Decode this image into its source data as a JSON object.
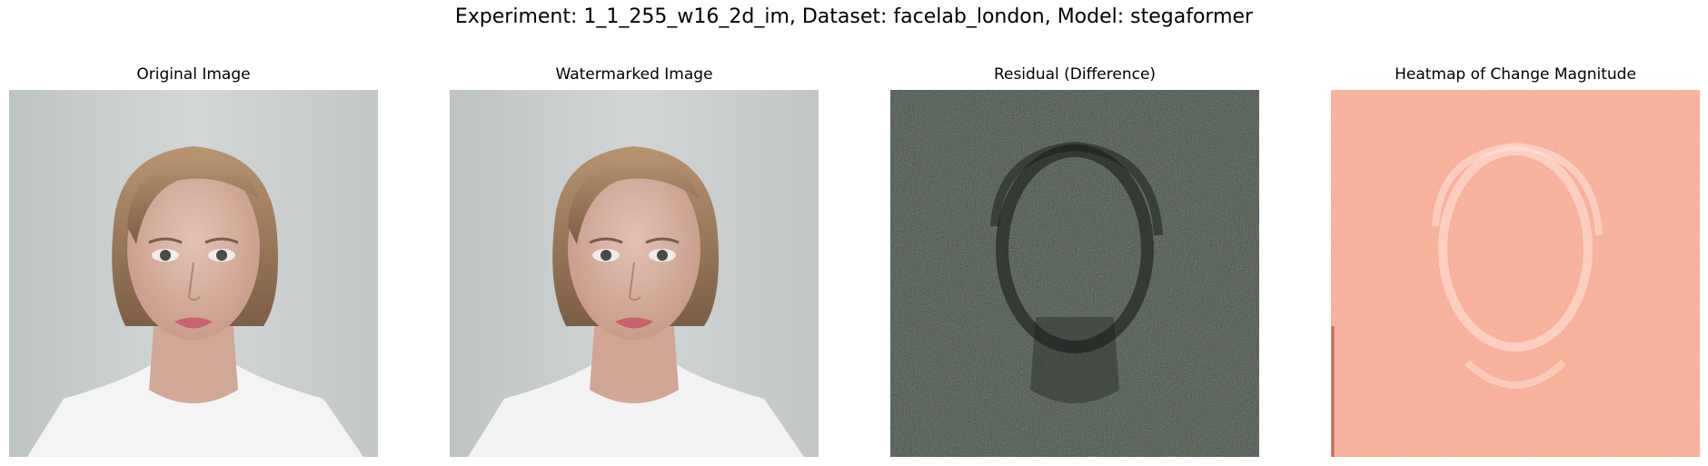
{
  "figure": {
    "suptitle": "Experiment: 1_1_255_w16_2d_im, Dataset: facelab_london, Model: stegaformer"
  },
  "panels": [
    {
      "title": "Original Image",
      "kind": "portrait"
    },
    {
      "title": "Watermarked Image",
      "kind": "portrait"
    },
    {
      "title": "Residual (Difference)",
      "kind": "residual"
    },
    {
      "title": "Heatmap of Change Magnitude",
      "kind": "heatmap",
      "colormap": "Reds"
    }
  ],
  "colors": {
    "portrait_background": "#c9cdcd",
    "residual_background": "#1f2a22",
    "heatmap_background": "#f9b7a0",
    "heatmap_dark": "#c8402e"
  }
}
